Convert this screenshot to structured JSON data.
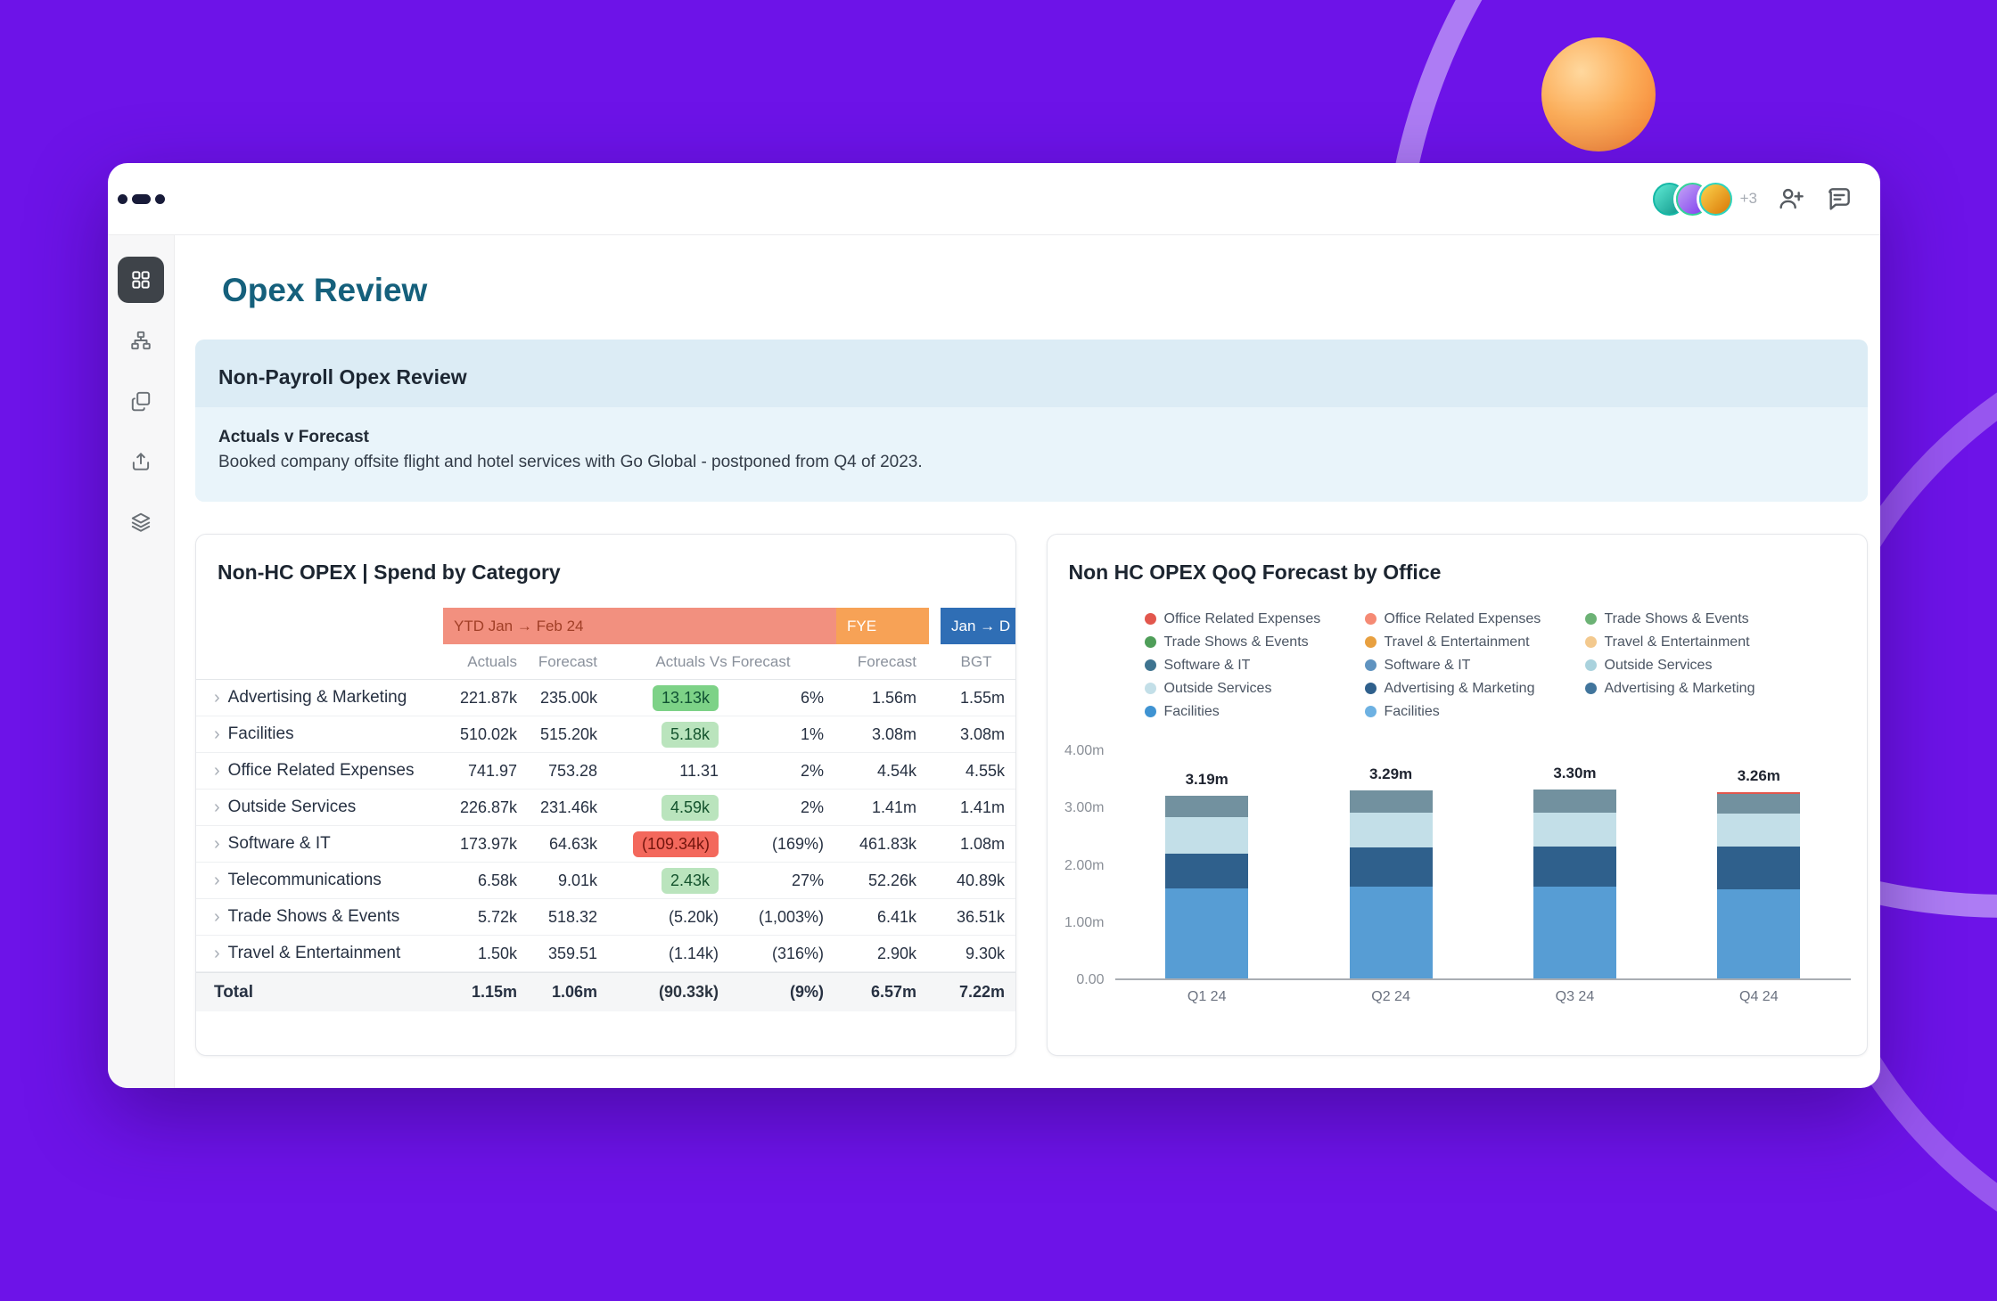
{
  "topbar": {
    "avatars_more": "+3",
    "icons": [
      "add-user-icon",
      "comment-icon"
    ]
  },
  "sidebar": {
    "items": [
      {
        "name": "dashboard-grid",
        "active": true
      },
      {
        "name": "hierarchy",
        "active": false
      },
      {
        "name": "copy-pages",
        "active": false
      },
      {
        "name": "share-export",
        "active": false
      },
      {
        "name": "layers",
        "active": false
      }
    ]
  },
  "page": {
    "title": "Opex Review"
  },
  "callout": {
    "title": "Non-Payroll Opex Review",
    "subtitle": "Actuals v Forecast",
    "body": "Booked company offsite flight and hotel services with Go Global - postponed from Q4 of 2023."
  },
  "spend_table": {
    "title": "Non-HC OPEX | Spend by Category",
    "bands": [
      {
        "label": "YTD Jan → Feb 24",
        "color": "#f2907f",
        "text_color": "#a13f27"
      },
      {
        "label": "FYE",
        "color": "#f7a256",
        "text_color": "#ffffff"
      },
      {
        "label": "Jan → D",
        "color": "#2f6eb5",
        "text_color": "#ffffff"
      }
    ],
    "columns": [
      "Actuals",
      "Forecast",
      "Actuals Vs Forecast",
      "Forecast",
      "BGT"
    ],
    "rows": [
      {
        "label": "Advertising & Marketing",
        "actuals": "221.87k",
        "forecast": "235.00k",
        "avf": "13.13k",
        "avf_style": "strong-green",
        "pct": "6%",
        "fye": "1.56m",
        "bgt": "1.55m"
      },
      {
        "label": "Facilities",
        "actuals": "510.02k",
        "forecast": "515.20k",
        "avf": "5.18k",
        "avf_style": "green",
        "pct": "1%",
        "fye": "3.08m",
        "bgt": "3.08m"
      },
      {
        "label": "Office Related Expenses",
        "actuals": "741.97",
        "forecast": "753.28",
        "avf": "11.31",
        "avf_style": "plain",
        "pct": "2%",
        "fye": "4.54k",
        "bgt": "4.55k"
      },
      {
        "label": "Outside Services",
        "actuals": "226.87k",
        "forecast": "231.46k",
        "avf": "4.59k",
        "avf_style": "green",
        "pct": "2%",
        "fye": "1.41m",
        "bgt": "1.41m"
      },
      {
        "label": "Software & IT",
        "actuals": "173.97k",
        "forecast": "64.63k",
        "avf": "(109.34k)",
        "avf_style": "red",
        "pct": "(169%)",
        "fye": "461.83k",
        "bgt": "1.08m"
      },
      {
        "label": "Telecommunications",
        "actuals": "6.58k",
        "forecast": "9.01k",
        "avf": "2.43k",
        "avf_style": "green",
        "pct": "27%",
        "fye": "52.26k",
        "bgt": "40.89k"
      },
      {
        "label": "Trade Shows & Events",
        "actuals": "5.72k",
        "forecast": "518.32",
        "avf": "(5.20k)",
        "avf_style": "plain",
        "pct": "(1,003%)",
        "fye": "6.41k",
        "bgt": "36.51k"
      },
      {
        "label": "Travel & Entertainment",
        "actuals": "1.50k",
        "forecast": "359.51",
        "avf": "(1.14k)",
        "avf_style": "plain",
        "pct": "(316%)",
        "fye": "2.90k",
        "bgt": "9.30k"
      }
    ],
    "total": {
      "label": "Total",
      "actuals": "1.15m",
      "forecast": "1.06m",
      "avf": "(90.33k)",
      "pct": "(9%)",
      "fye": "6.57m",
      "bgt": "7.22m"
    }
  },
  "chart_card": {
    "title": "Non HC OPEX QoQ Forecast by Office",
    "legend_columns": [
      [
        {
          "label": "Office Related Expenses",
          "color": "#e2574d"
        },
        {
          "label": "Trade Shows & Events",
          "color": "#4f9e59"
        },
        {
          "label": "Software & IT",
          "color": "#3f7490"
        },
        {
          "label": "Outside Services",
          "color": "#c3dfe8"
        },
        {
          "label": "Facilities",
          "color": "#3f93d2"
        }
      ],
      [
        {
          "label": "Office Related Expenses",
          "color": "#f58a74"
        },
        {
          "label": "Travel & Entertainment",
          "color": "#e8a040"
        },
        {
          "label": "Software & IT",
          "color": "#5f93c0"
        },
        {
          "label": "Advertising & Marketing",
          "color": "#2f608c"
        },
        {
          "label": "Facilities",
          "color": "#6db1e2"
        }
      ],
      [
        {
          "label": "Trade Shows & Events",
          "color": "#6cb275"
        },
        {
          "label": "Travel & Entertainment",
          "color": "#f3c98e"
        },
        {
          "label": "Outside Services",
          "color": "#a9d2dd"
        },
        {
          "label": "Advertising & Marketing",
          "color": "#41759c"
        }
      ]
    ]
  },
  "chart_data": {
    "type": "bar",
    "stacked": true,
    "title": "Non HC OPEX QoQ Forecast by Office",
    "categories": [
      "Q1 24",
      "Q2 24",
      "Q3 24",
      "Q4 24"
    ],
    "series": [
      {
        "name": "Facilities",
        "color": "#579dd4",
        "values": [
          1.58,
          1.6,
          1.6,
          1.55
        ]
      },
      {
        "name": "Advertising & Marketing",
        "color": "#2f608c",
        "values": [
          0.6,
          0.69,
          0.7,
          0.75
        ]
      },
      {
        "name": "Outside Services",
        "color": "#c3dfe8",
        "values": [
          0.63,
          0.6,
          0.6,
          0.58
        ]
      },
      {
        "name": "Software & IT",
        "color": "#72919f",
        "values": [
          0.38,
          0.4,
          0.4,
          0.35
        ]
      },
      {
        "name": "Office Related Expenses",
        "color": "#e2574d",
        "values": [
          0,
          0,
          0,
          0.03
        ]
      }
    ],
    "totals": [
      "3.19m",
      "3.29m",
      "3.30m",
      "3.26m"
    ],
    "ylabels": [
      "4.00m",
      "3.00m",
      "2.00m",
      "1.00m",
      "0.00"
    ],
    "ylim": [
      0,
      4
    ],
    "grid": false,
    "legend_position": "top"
  }
}
